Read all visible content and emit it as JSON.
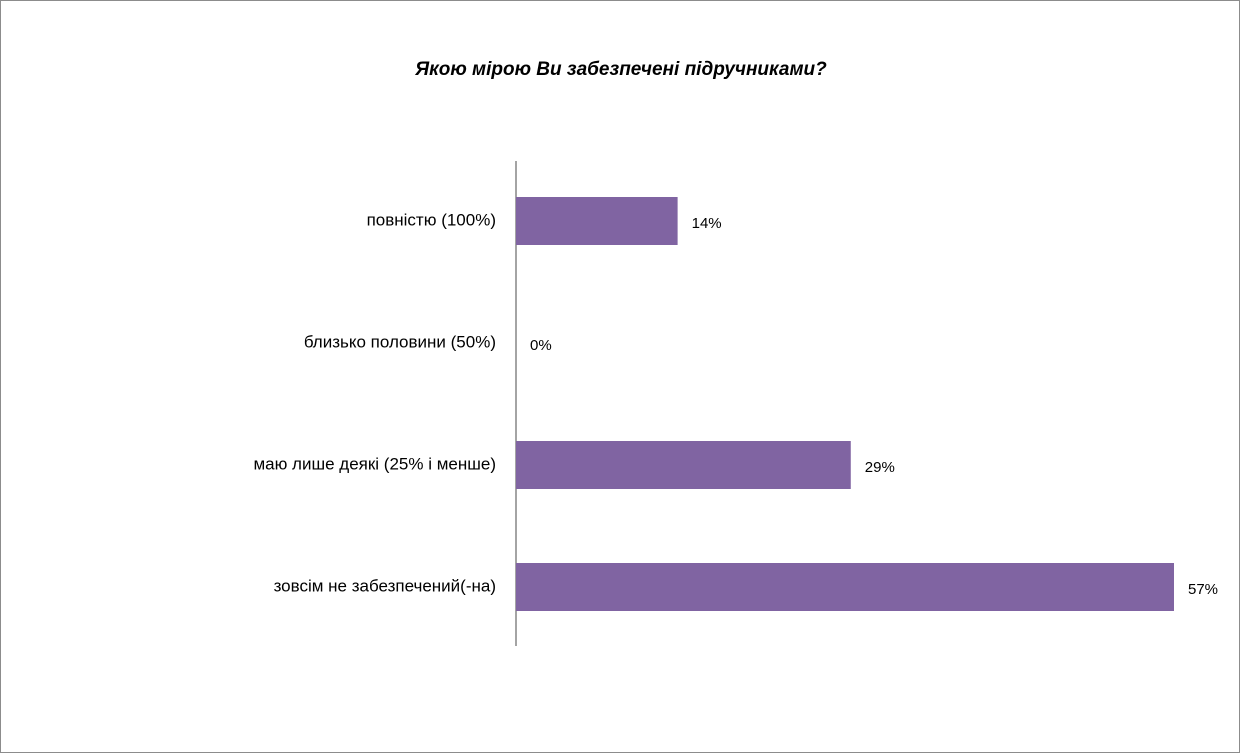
{
  "chart_data": {
    "type": "bar",
    "orientation": "horizontal",
    "title": "Якою мірою Ви забезпечені підручниками?",
    "categories": [
      "повністю (100%)",
      "близько половини (50%)",
      "маю лише деякі (25% і менше)",
      "зовсім не забезпечений(-на)"
    ],
    "values": [
      14,
      0,
      29,
      57
    ],
    "value_labels": [
      "14%",
      "0%",
      "29%",
      "57%"
    ],
    "xlim": [
      0,
      57
    ],
    "grid": false,
    "legend": "none",
    "bar_color": "#8064a2"
  }
}
